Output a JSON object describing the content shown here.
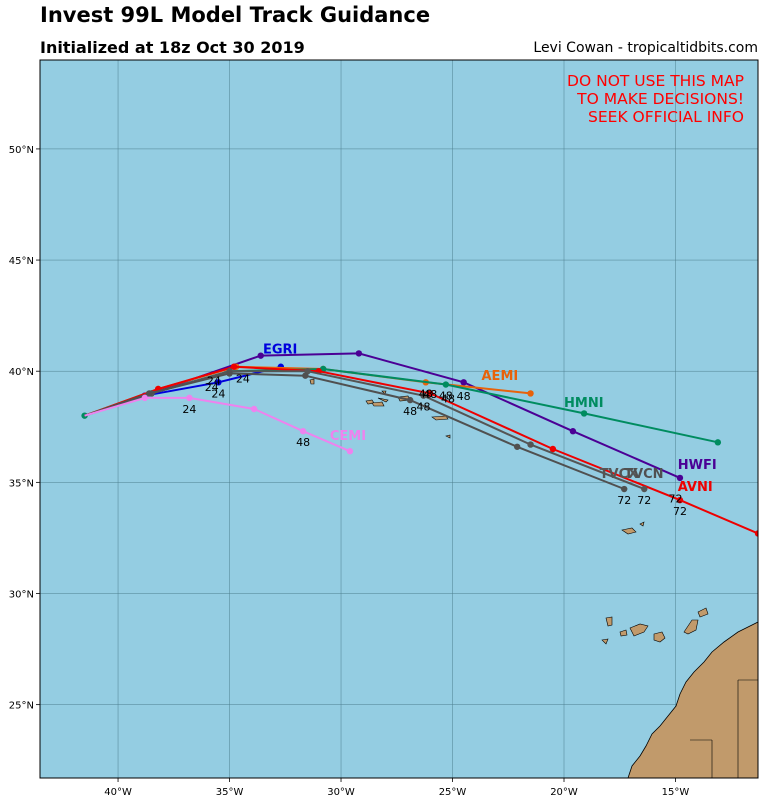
{
  "title": "Invest 99L Model Track Guidance",
  "subtitle": "Initialized at 18z Oct 30 2019",
  "credit": "Levi Cowan - tropicaltidbits.com",
  "warning": [
    "DO NOT USE THIS MAP",
    "TO MAKE DECISIONS!",
    "SEEK OFFICIAL INFO"
  ],
  "colors": {
    "ocean": "#94cde2",
    "land": "#c19a6b",
    "grid": "#4a7a8a",
    "warning": "#ff0000"
  },
  "axes": {
    "lon_ticks": [
      {
        "value": -40,
        "label": "40°W"
      },
      {
        "value": -35,
        "label": "35°W"
      },
      {
        "value": -30,
        "label": "30°W"
      },
      {
        "value": -25,
        "label": "25°W"
      },
      {
        "value": -20,
        "label": "20°W"
      },
      {
        "value": -15,
        "label": "15°W"
      }
    ],
    "lat_ticks": [
      {
        "value": 25,
        "label": "25°N"
      },
      {
        "value": 30,
        "label": "30°N"
      },
      {
        "value": 35,
        "label": "35°N"
      },
      {
        "value": 40,
        "label": "40°N"
      },
      {
        "value": 45,
        "label": "45°N"
      },
      {
        "value": 50,
        "label": "50°N"
      }
    ],
    "lon_range": [
      -43.5,
      -11.3
    ],
    "lat_range": [
      21.7,
      54
    ]
  },
  "models": [
    {
      "name": "HWFI",
      "color": "#4b0095",
      "track": [
        [
          -41.5,
          38.0
        ],
        [
          -38.8,
          38.9
        ],
        [
          -33.6,
          40.7
        ],
        [
          -29.2,
          40.8
        ],
        [
          -24.5,
          39.5
        ],
        [
          -19.6,
          37.3
        ],
        [
          -14.8,
          35.2
        ]
      ],
      "hours": []
    },
    {
      "name": "EGRI",
      "color": "#0000dd",
      "track": [
        [
          -41.5,
          38.0
        ],
        [
          -38.8,
          38.9
        ],
        [
          -35.5,
          39.5
        ],
        [
          -32.7,
          40.2
        ]
      ],
      "hours": [
        {
          "i": 2,
          "label": "24"
        }
      ]
    },
    {
      "name": "AEMI",
      "color": "#e8620a",
      "track": [
        [
          -41.5,
          38.0
        ],
        [
          -38.2,
          39.2
        ],
        [
          -34.7,
          40.2
        ],
        [
          -30.8,
          40.1
        ],
        [
          -26.2,
          39.5
        ],
        [
          -21.5,
          39.0
        ]
      ],
      "hours": [
        {
          "i": 4,
          "label": "48"
        }
      ]
    },
    {
      "name": "HMNI",
      "color": "#008c60",
      "track": [
        [
          -41.5,
          38.0
        ],
        [
          -38.5,
          39.0
        ],
        [
          -35.0,
          40.0
        ],
        [
          -30.8,
          40.1
        ],
        [
          -25.3,
          39.4
        ],
        [
          -19.1,
          38.1
        ],
        [
          -13.1,
          36.8
        ]
      ],
      "hours": [
        {
          "i": 4,
          "label": "48"
        }
      ]
    },
    {
      "name": "AVNI",
      "color": "#ee0000",
      "track": [
        [
          -41.5,
          38.0
        ],
        [
          -38.2,
          39.2
        ],
        [
          -34.8,
          40.2
        ],
        [
          -31.0,
          40.0
        ],
        [
          -26.0,
          39.0
        ],
        [
          -20.5,
          36.5
        ],
        [
          -14.8,
          34.2
        ],
        [
          -11.3,
          32.7
        ]
      ],
      "hours": [
        {
          "i": 6,
          "label": "72"
        }
      ]
    },
    {
      "name": "TVCX",
      "color": "#555555",
      "track": [
        [
          -41.5,
          38.0
        ],
        [
          -38.5,
          39.0
        ],
        [
          -35.0,
          40.0
        ],
        [
          -31.5,
          40.0
        ],
        [
          -26.3,
          38.9
        ],
        [
          -21.5,
          36.7
        ],
        [
          -16.4,
          34.7
        ]
      ],
      "hours": [
        {
          "i": 4,
          "label": "48"
        },
        {
          "i": 6,
          "label": "72"
        }
      ]
    },
    {
      "name": "TVCN",
      "color": "#505050",
      "track": [
        [
          -41.5,
          38.0
        ],
        [
          -38.6,
          39.0
        ],
        [
          -35.0,
          39.9
        ],
        [
          -31.6,
          39.8
        ],
        [
          -26.9,
          38.7
        ],
        [
          -22.1,
          36.6
        ],
        [
          -17.3,
          34.7
        ]
      ],
      "hours": [
        {
          "i": 4,
          "label": "48"
        },
        {
          "i": 6,
          "label": "72"
        }
      ]
    },
    {
      "name": "CEMI",
      "color": "#ee82ee",
      "track": [
        [
          -41.5,
          38.0
        ],
        [
          -38.8,
          38.8
        ],
        [
          -36.8,
          38.8
        ],
        [
          -33.9,
          38.3
        ],
        [
          -31.7,
          37.3
        ],
        [
          -29.6,
          36.4
        ]
      ],
      "hours": [
        {
          "i": 2,
          "label": "24"
        },
        {
          "i": 4,
          "label": "48"
        }
      ]
    }
  ],
  "model_labels": [
    {
      "model": "EGRI",
      "text": "EGRI",
      "lon": -33.5,
      "lat": 40.8
    },
    {
      "model": "AEMI",
      "text": "AEMI",
      "lon": -23.7,
      "lat": 39.6
    },
    {
      "model": "HMNI",
      "text": "HMNI",
      "lon": -20.0,
      "lat": 38.4
    },
    {
      "model": "CEMI",
      "text": "CEMI",
      "lon": -30.5,
      "lat": 36.9
    },
    {
      "model": "HWFI",
      "text": "HWFI",
      "lon": -14.9,
      "lat": 35.6
    },
    {
      "model": "TVCX",
      "text": "TVCX",
      "lon": -18.4,
      "lat": 35.2
    },
    {
      "model": "TVCN",
      "text": "TVCN",
      "lon": -17.3,
      "lat": 35.2
    },
    {
      "model": "AVNI",
      "text": "AVNI",
      "lon": -14.9,
      "lat": 34.6
    }
  ],
  "hour_labels_extra": [
    {
      "text": "24",
      "lon": -34.4,
      "lat": 39.5
    },
    {
      "text": "24",
      "lon": -35.7,
      "lat": 39.4
    },
    {
      "text": "24",
      "lon": -35.8,
      "lat": 39.1
    },
    {
      "text": "48",
      "lon": -26.0,
      "lat": 38.8
    },
    {
      "text": "48",
      "lon": -25.2,
      "lat": 38.6
    },
    {
      "text": "48",
      "lon": -24.5,
      "lat": 38.7
    },
    {
      "text": "72",
      "lon": -15.0,
      "lat": 34.1
    }
  ]
}
